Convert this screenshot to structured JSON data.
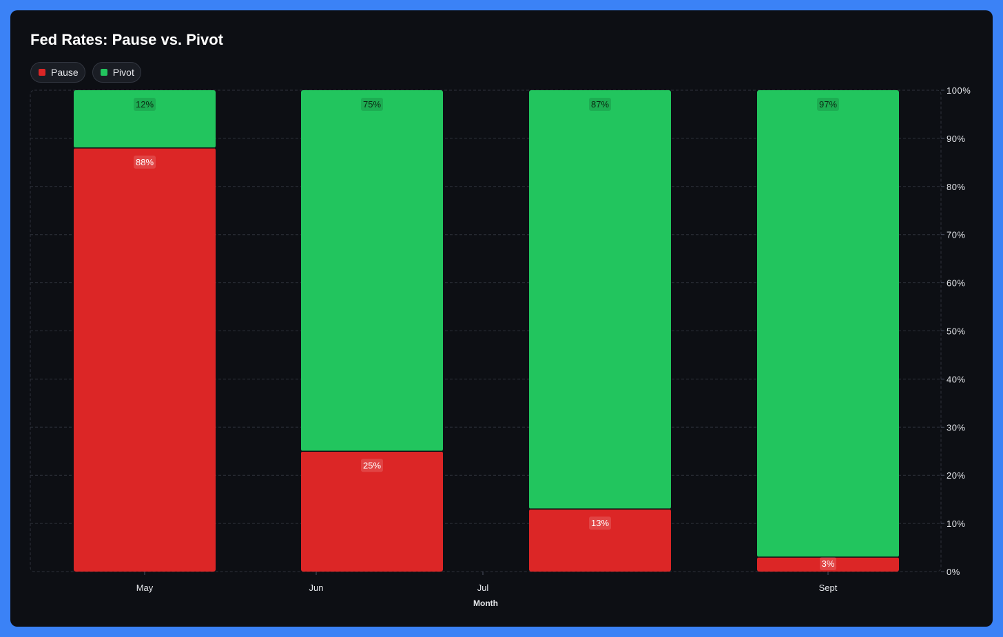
{
  "chart_data": {
    "type": "bar",
    "stacked": true,
    "title": "Fed Rates: Pause vs. Pivot",
    "xlabel": "Month",
    "ylabel": "",
    "x_ticks": [
      "May",
      "Jun",
      "Jul",
      "Sept"
    ],
    "categories": [
      "May",
      "Jun",
      "Jul",
      "Sept"
    ],
    "bar_categories": [
      "May",
      "Jun",
      "",
      "Sept"
    ],
    "series": [
      {
        "name": "Pause",
        "color": "#dc2626",
        "values": [
          88,
          25,
          13,
          3
        ]
      },
      {
        "name": "Pivot",
        "color": "#22c55e",
        "values": [
          12,
          75,
          87,
          97
        ]
      }
    ],
    "data_labels": {
      "Pause": [
        "88%",
        "25%",
        "13%",
        "3%"
      ],
      "Pivot": [
        "12%",
        "75%",
        "87%",
        "97%"
      ]
    },
    "ylim": [
      0,
      100
    ],
    "y_ticks": [
      "0%",
      "10%",
      "20%",
      "30%",
      "40%",
      "50%",
      "60%",
      "70%",
      "80%",
      "90%",
      "100%"
    ],
    "y_axis_position": "right",
    "grid": true,
    "legend_position": "top-left"
  },
  "legend": [
    {
      "label": "Pause",
      "color": "#dc2626"
    },
    {
      "label": "Pivot",
      "color": "#22c55e"
    }
  ]
}
